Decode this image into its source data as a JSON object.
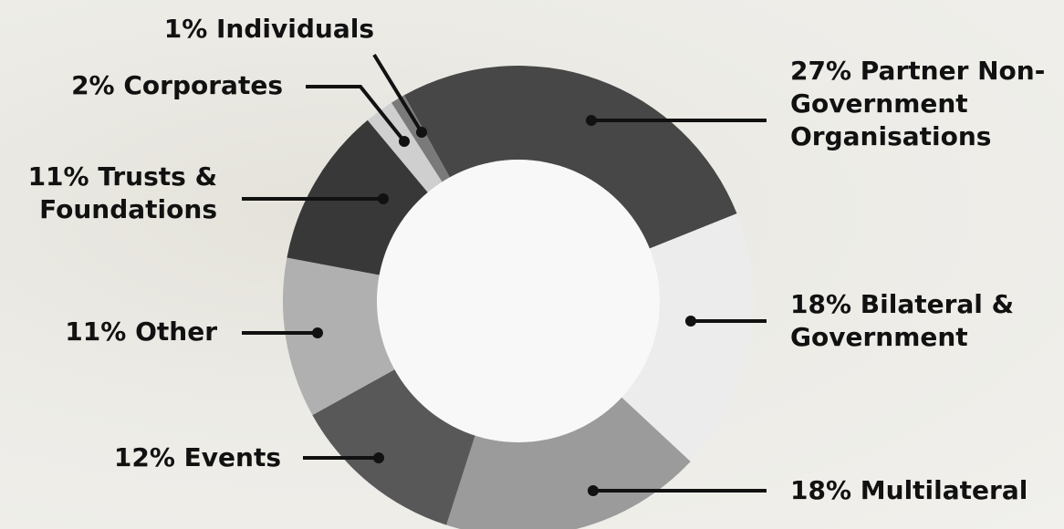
{
  "chart_data": {
    "type": "donut",
    "categories": [
      "Partner Non-Government Organisations",
      "Bilateral & Government",
      "Multilateral",
      "Events",
      "Other",
      "Trusts & Foundations",
      "Corporates",
      "Individuals"
    ],
    "values": [
      27,
      18,
      18,
      12,
      11,
      11,
      2,
      1
    ],
    "value_labels": [
      "27%",
      "18%",
      "18%",
      "12%",
      "11%",
      "11%",
      "2%",
      "1%"
    ],
    "colors": [
      "#474747",
      "#ececec",
      "#9b9b9b",
      "#585858",
      "#b0b0b0",
      "#383838",
      "#cfcfcf",
      "#7a7a7a"
    ]
  }
}
